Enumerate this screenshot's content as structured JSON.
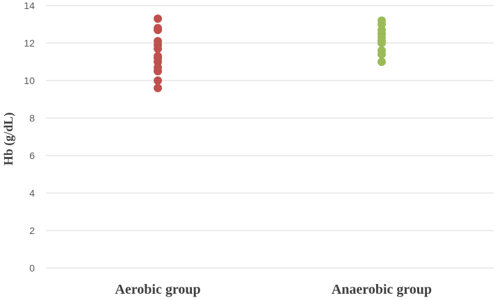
{
  "chart_data": {
    "type": "scatter",
    "title": "",
    "xlabel": "",
    "ylabel": "Hb (g/dL)",
    "ylim": [
      0,
      14
    ],
    "yticks": [
      0,
      2,
      4,
      6,
      8,
      10,
      12,
      14
    ],
    "grid": true,
    "legend": "none",
    "categories": [
      "Aerobic group",
      "Anaerobic group"
    ],
    "series": [
      {
        "category": "Aerobic group",
        "color": "#c0504d",
        "values": [
          13.3,
          12.8,
          12.7,
          12.1,
          11.9,
          11.7,
          11.3,
          11.2,
          11.0,
          10.7,
          10.5,
          10.0,
          9.6
        ]
      },
      {
        "category": "Anaerobic group",
        "color": "#9bbb59",
        "values": [
          13.2,
          13.0,
          12.7,
          12.5,
          12.3,
          12.1,
          12.0,
          11.6,
          11.4,
          11.0
        ]
      }
    ]
  }
}
